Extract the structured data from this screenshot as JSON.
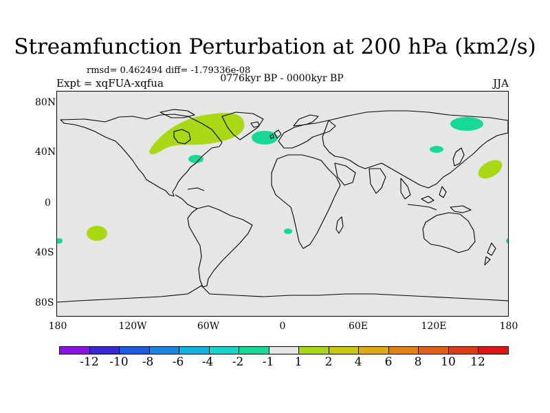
{
  "title": "Streamfunction Perturbation at 200 hPa (km2/s)",
  "stats": "rmsd= 0.462494 diff= -1.79336e-08",
  "period": "0776kyr BP - 0000kyr BP",
  "experiment": "Expt = xqFUA-xqfua",
  "season": "JJA",
  "map": {
    "background_color": "#e6e6e6",
    "coast_color": "#000000",
    "y_axis_labels": [
      "80N",
      "40N",
      "0",
      "40S",
      "80S"
    ],
    "x_axis_labels": [
      "180",
      "120W",
      "60W",
      "0",
      "60E",
      "120E",
      "180"
    ]
  },
  "colorbar": {
    "colors": [
      "#8a14e6",
      "#3a28d6",
      "#1e5adc",
      "#1a86e0",
      "#10b4dc",
      "#16d6cc",
      "#16d898",
      "#e6e6e6",
      "#a8d816",
      "#c8c80e",
      "#dcac12",
      "#e08416",
      "#e0601a",
      "#e03a16",
      "#e01414"
    ],
    "labels": [
      "-12",
      "-10",
      "-8",
      "-6",
      "-4",
      "-2",
      "-1",
      "1",
      "2",
      "4",
      "6",
      "8",
      "10",
      "12"
    ]
  },
  "anomalies": [
    {
      "region": "North America / North Atlantic",
      "level": "2",
      "color": "#a8d816"
    },
    {
      "region": "North Atlantic",
      "level": "-1",
      "color": "#16d898"
    },
    {
      "region": "Western Atlantic",
      "level": "-1",
      "color": "#16d898"
    },
    {
      "region": "Siberia",
      "level": "-1",
      "color": "#16d898"
    },
    {
      "region": "East Asia",
      "level": "-1",
      "color": "#16d898"
    },
    {
      "region": "North Pacific",
      "level": "2",
      "color": "#a8d816"
    },
    {
      "region": "South Pacific",
      "level": "2",
      "color": "#a8d816"
    },
    {
      "region": "South Atlantic",
      "level": "-1",
      "color": "#16d898"
    }
  ]
}
